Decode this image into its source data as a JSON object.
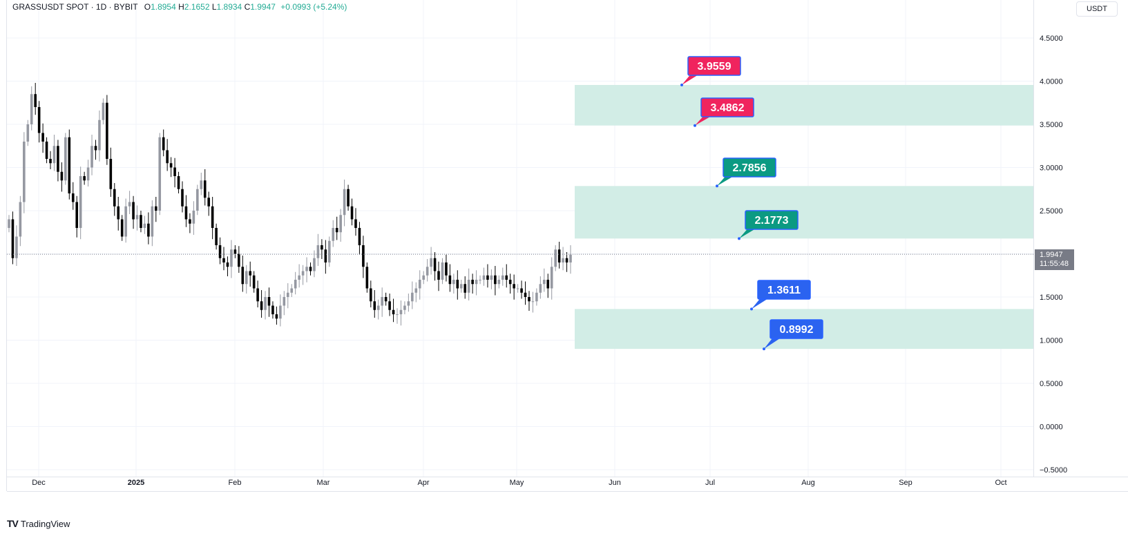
{
  "header": {
    "symbol": "GRASSUSDT SPOT · 1D · BYBIT",
    "o_label": "O",
    "o_value": "1.8954",
    "h_label": "H",
    "h_value": "2.1652",
    "l_label": "L",
    "l_value": "1.8934",
    "c_label": "C",
    "c_value": "1.9947",
    "change": "+0.0993 (+5.24%)"
  },
  "currency": "USDT",
  "footer": {
    "brand": "TradingView",
    "mark": "TV"
  },
  "last_price": {
    "value": "1.9947",
    "countdown": "11:55:48"
  },
  "colors": {
    "bull": "#9598a1",
    "bear": "#000000",
    "zone": "#d2ede6",
    "resistance_label": "#f0245e",
    "mid_label": "#0b9a82",
    "support_label": "#2b63f0",
    "label_border": "#2962ff",
    "grid": "#f0f3fa"
  },
  "chart_data": {
    "type": "candlestick",
    "y_ticks": [
      "4.5000",
      "4.0000",
      "3.5000",
      "3.0000",
      "2.5000",
      "2.0000",
      "1.5000",
      "1.0000",
      "0.5000",
      "0.0000",
      "−0.5000"
    ],
    "y_tick_values": [
      4.5,
      4.0,
      3.5,
      3.0,
      2.5,
      2.0,
      1.5,
      1.0,
      0.5,
      0.0,
      -0.5
    ],
    "ylim": [
      -0.5,
      4.5
    ],
    "x_ticks": [
      {
        "label": "Dec",
        "bold": false
      },
      {
        "label": "2025",
        "bold": true
      },
      {
        "label": "Feb",
        "bold": false
      },
      {
        "label": "Mar",
        "bold": false
      },
      {
        "label": "Apr",
        "bold": false
      },
      {
        "label": "May",
        "bold": false
      },
      {
        "label": "Jun",
        "bold": false
      },
      {
        "label": "Jul",
        "bold": false
      },
      {
        "label": "Aug",
        "bold": false
      },
      {
        "label": "Sep",
        "bold": false
      },
      {
        "label": "Oct",
        "bold": false
      }
    ],
    "candles_close": [
      2.4,
      1.95,
      2.2,
      2.6,
      3.3,
      3.5,
      3.85,
      3.7,
      3.4,
      3.3,
      3.1,
      3.05,
      3.25,
      2.95,
      2.85,
      3.35,
      2.7,
      2.6,
      2.3,
      2.9,
      2.85,
      3.0,
      3.25,
      3.2,
      3.55,
      3.75,
      3.1,
      2.75,
      2.55,
      2.4,
      2.2,
      2.55,
      2.6,
      2.4,
      2.45,
      2.3,
      2.35,
      2.2,
      2.55,
      2.5,
      3.35,
      3.2,
      3.05,
      3.0,
      2.9,
      2.75,
      2.55,
      2.4,
      2.35,
      2.5,
      2.75,
      2.85,
      2.65,
      2.55,
      2.3,
      2.1,
      1.95,
      1.9,
      1.85,
      2.05,
      2.0,
      1.85,
      1.65,
      1.8,
      1.75,
      1.6,
      1.45,
      1.35,
      1.5,
      1.4,
      1.3,
      1.25,
      1.4,
      1.5,
      1.55,
      1.6,
      1.7,
      1.75,
      1.8,
      1.85,
      1.8,
      1.95,
      2.1,
      2.05,
      1.9,
      2.15,
      2.3,
      2.25,
      2.45,
      2.75,
      2.55,
      2.4,
      2.3,
      2.1,
      1.85,
      1.6,
      1.45,
      1.35,
      1.4,
      1.5,
      1.45,
      1.35,
      1.3,
      1.3,
      1.35,
      1.4,
      1.45,
      1.55,
      1.6,
      1.7,
      1.75,
      1.85,
      1.95,
      1.8,
      1.7,
      1.9,
      1.75,
      1.65,
      1.7,
      1.6,
      1.65,
      1.55,
      1.7,
      1.65,
      1.7,
      1.7,
      1.75,
      1.7,
      1.75,
      1.65,
      1.7,
      1.75,
      1.7,
      1.65,
      1.6,
      1.6,
      1.55,
      1.5,
      1.45,
      1.45,
      1.55,
      1.65,
      1.7,
      1.6,
      1.85,
      2.05,
      1.9,
      1.95,
      1.9,
      1.99
    ],
    "zones": [
      {
        "top": 3.9559,
        "bottom": 3.4862
      },
      {
        "top": 2.7856,
        "bottom": 2.1773
      },
      {
        "top": 1.3611,
        "bottom": 0.8992
      }
    ],
    "labels": [
      {
        "text": "3.9559",
        "value": 3.9559,
        "kind": "resistance"
      },
      {
        "text": "3.4862",
        "value": 3.4862,
        "kind": "resistance"
      },
      {
        "text": "2.7856",
        "value": 2.7856,
        "kind": "mid"
      },
      {
        "text": "2.1773",
        "value": 2.1773,
        "kind": "mid"
      },
      {
        "text": "1.3611",
        "value": 1.3611,
        "kind": "support"
      },
      {
        "text": "0.8992",
        "value": 0.8992,
        "kind": "support"
      }
    ],
    "last_price": 1.9947
  }
}
